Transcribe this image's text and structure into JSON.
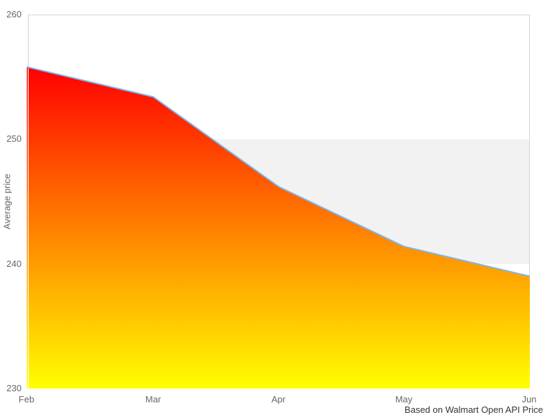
{
  "chart_data": {
    "type": "area",
    "title": "",
    "categories": [
      "Feb",
      "Mar",
      "Apr",
      "May",
      "Jun"
    ],
    "values": [
      255.8,
      253.4,
      246.2,
      241.4,
      239.0
    ],
    "series_name": "Average price",
    "xlabel": "",
    "ylabel": "Average price",
    "ylim": [
      230,
      260
    ],
    "yticks": [
      260,
      250,
      240,
      230
    ],
    "ytick_labels": [
      "260",
      "250",
      "240",
      "230"
    ],
    "caption": "Based on Walmart Open API Price",
    "grid": false,
    "legend": false,
    "band": {
      "from": 240,
      "to": 250,
      "color": "#f2f2f2"
    },
    "colors": {
      "line": "#7cb5ec",
      "area_gradient_top": "#ff0000",
      "area_gradient_bottom": "#ffff00",
      "plot_border": "#d4d4d4",
      "tick_label": "#666666",
      "caption_text": "#333333",
      "background": "#ffffff"
    }
  }
}
